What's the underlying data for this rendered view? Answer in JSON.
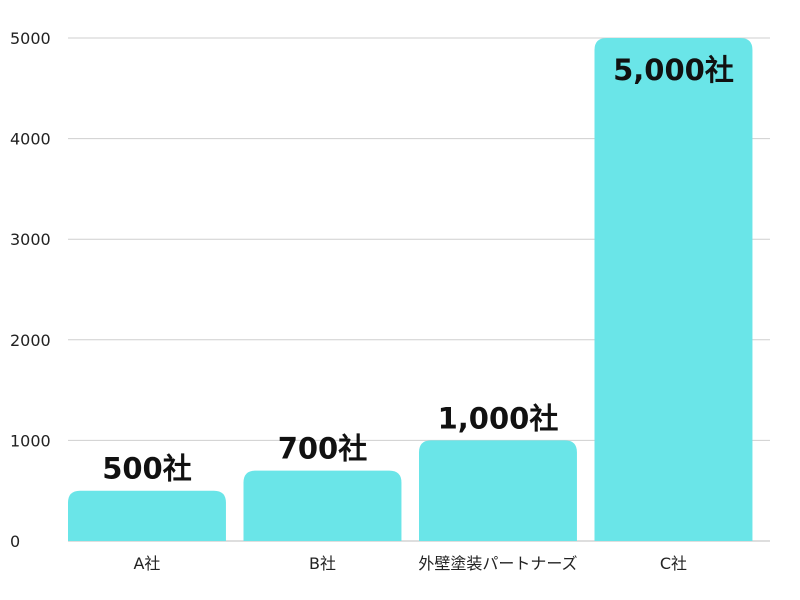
{
  "chart_data": {
    "type": "bar",
    "categories": [
      "A社",
      "B社",
      "外壁塗装パートナーズ",
      "C社"
    ],
    "values": [
      500,
      700,
      1000,
      5000
    ],
    "data_labels": [
      "500社",
      "700社",
      "1,000社",
      "5,000社"
    ],
    "title": "",
    "xlabel": "",
    "ylabel": "",
    "ylim": [
      0,
      5000
    ],
    "yticks": [
      0,
      1000,
      2000,
      3000,
      4000,
      5000
    ],
    "ytick_labels": [
      "0",
      "1000",
      "2000",
      "3000",
      "4000",
      "5000"
    ],
    "grid": true,
    "legend": false,
    "bar_color": "#6ae5e8",
    "label_inside_top_for_max": true
  }
}
